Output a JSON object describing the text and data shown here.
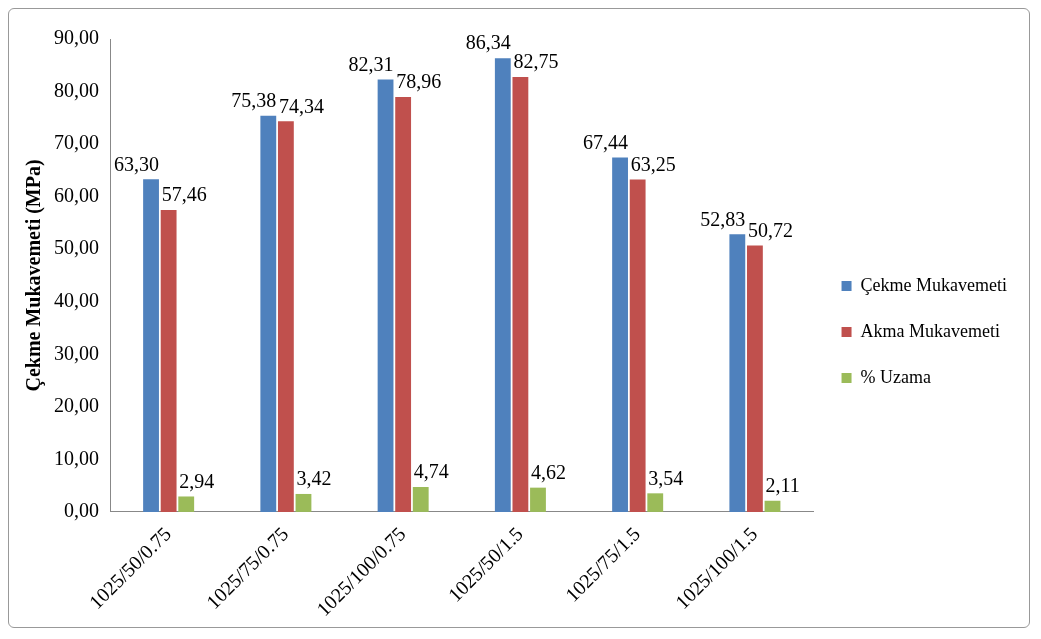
{
  "chart_data": {
    "type": "bar",
    "ylabel": "Çekme Mukavemeti (MPa)",
    "categories": [
      "1025/50/0.75",
      "1025/75/0.75",
      "1025/100/0.75",
      "1025/50/1.5",
      "1025/75/1.5",
      "1025/100/1.5"
    ],
    "series": [
      {
        "name": "Çekme Mukavemeti",
        "color": "#4f81bd",
        "values": [
          63.3,
          75.38,
          82.31,
          86.34,
          67.44,
          52.83
        ],
        "value_labels": [
          "63,30",
          "75,38",
          "82,31",
          "86,34",
          "67,44",
          "52,83"
        ]
      },
      {
        "name": "Akma Mukavemeti",
        "color": "#c0504d",
        "values": [
          57.46,
          74.34,
          78.96,
          82.75,
          63.25,
          50.72
        ],
        "value_labels": [
          "57,46",
          "74,34",
          "78,96",
          "82,75",
          "63,25",
          "50,72"
        ]
      },
      {
        "name": "% Uzama",
        "color": "#9bbb59",
        "values": [
          2.94,
          3.42,
          4.74,
          4.62,
          3.54,
          2.11
        ],
        "value_labels": [
          "2,94",
          "3,42",
          "4,74",
          "4,62",
          "3,54",
          "2,11"
        ]
      }
    ],
    "ylim": [
      0,
      90
    ],
    "yticks": [
      {
        "value": 0,
        "label": "0,00"
      },
      {
        "value": 10,
        "label": "10,00"
      },
      {
        "value": 20,
        "label": "20,00"
      },
      {
        "value": 30,
        "label": "30,00"
      },
      {
        "value": 40,
        "label": "40,00"
      },
      {
        "value": 50,
        "label": "50,00"
      },
      {
        "value": 60,
        "label": "60,00"
      },
      {
        "value": 70,
        "label": "70,00"
      },
      {
        "value": 80,
        "label": "80,00"
      },
      {
        "value": 90,
        "label": "90,00"
      }
    ],
    "grid": false,
    "legend": "right"
  }
}
